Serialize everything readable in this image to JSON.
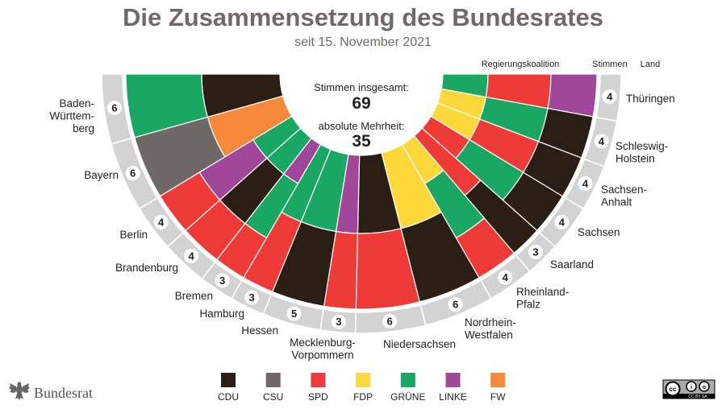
{
  "chart_data": {
    "type": "semicircle-seat-distribution",
    "title": "Die Zusammensetzung des Bundesrates",
    "subtitle": "seit 15. November 2021",
    "column_headers": {
      "coalition": "Regierungskoalition",
      "votes": "Stimmen",
      "state": "Land"
    },
    "total_label": "Stimmen insgesamt:",
    "total_value": "69",
    "majority_label": "absolute Mehrheit:",
    "majority_value": "35",
    "parties": [
      {
        "key": "CDU",
        "label": "CDU",
        "color": "#2b1e14"
      },
      {
        "key": "CSU",
        "label": "CSU",
        "color": "#6e6866"
      },
      {
        "key": "SPD",
        "label": "SPD",
        "color": "#ee3b38"
      },
      {
        "key": "FDP",
        "label": "FDP",
        "color": "#fdd83a"
      },
      {
        "key": "GRUENE",
        "label": "GRÜNE",
        "color": "#1aa764"
      },
      {
        "key": "LINKE",
        "label": "LINKE",
        "color": "#a0479a"
      },
      {
        "key": "FW",
        "label": "FW",
        "color": "#f5883a"
      }
    ],
    "states": [
      {
        "name": "Baden-Württemberg",
        "lines": [
          "Baden-",
          "Württem-",
          "berg"
        ],
        "votes": "6",
        "coalition_outer_to_inner": [
          "GRUENE",
          "CDU"
        ]
      },
      {
        "name": "Bayern",
        "lines": [
          "Bayern"
        ],
        "votes": "6",
        "coalition_outer_to_inner": [
          "CSU",
          "FW"
        ]
      },
      {
        "name": "Berlin",
        "lines": [
          "Berlin"
        ],
        "votes": "4",
        "coalition_outer_to_inner": [
          "SPD",
          "LINKE",
          "GRUENE"
        ]
      },
      {
        "name": "Brandenburg",
        "lines": [
          "Brandenburg"
        ],
        "votes": "4",
        "coalition_outer_to_inner": [
          "SPD",
          "CDU",
          "GRUENE"
        ]
      },
      {
        "name": "Bremen",
        "lines": [
          "Bremen"
        ],
        "votes": "3",
        "coalition_outer_to_inner": [
          "SPD",
          "GRUENE",
          "LINKE"
        ]
      },
      {
        "name": "Hamburg",
        "lines": [
          "Hamburg"
        ],
        "votes": "3",
        "coalition_outer_to_inner": [
          "SPD",
          "GRUENE"
        ]
      },
      {
        "name": "Hessen",
        "lines": [
          "Hessen"
        ],
        "votes": "5",
        "coalition_outer_to_inner": [
          "CDU",
          "GRUENE"
        ]
      },
      {
        "name": "Mecklenburg-Vorpommern",
        "lines": [
          "Mecklenburg-",
          "Vorpommern"
        ],
        "votes": "3",
        "coalition_outer_to_inner": [
          "SPD",
          "LINKE"
        ]
      },
      {
        "name": "Niedersachsen",
        "lines": [
          "Niedersachsen"
        ],
        "votes": "6",
        "coalition_outer_to_inner": [
          "SPD",
          "CDU"
        ]
      },
      {
        "name": "Nordrhein-Westfalen",
        "lines": [
          "Nordrhein-",
          "Westfalen"
        ],
        "votes": "6",
        "coalition_outer_to_inner": [
          "CDU",
          "FDP"
        ]
      },
      {
        "name": "Rheinland-Pfalz",
        "lines": [
          "Rheinland-",
          "Pfalz"
        ],
        "votes": "4",
        "coalition_outer_to_inner": [
          "SPD",
          "GRUENE",
          "FDP"
        ]
      },
      {
        "name": "Saarland",
        "lines": [
          "Saarland"
        ],
        "votes": "3",
        "coalition_outer_to_inner": [
          "CDU",
          "SPD"
        ]
      },
      {
        "name": "Sachsen",
        "lines": [
          "Sachsen"
        ],
        "votes": "4",
        "coalition_outer_to_inner": [
          "CDU",
          "GRUENE",
          "SPD"
        ]
      },
      {
        "name": "Sachsen-Anhalt",
        "lines": [
          "Sachsen-",
          "Anhalt"
        ],
        "votes": "4",
        "coalition_outer_to_inner": [
          "CDU",
          "SPD",
          "FDP"
        ]
      },
      {
        "name": "Schleswig-Holstein",
        "lines": [
          "Schleswig-",
          "Holstein"
        ],
        "votes": "4",
        "coalition_outer_to_inner": [
          "CDU",
          "GRUENE",
          "FDP"
        ]
      },
      {
        "name": "Thüringen",
        "lines": [
          "Thüringen"
        ],
        "votes": "4",
        "coalition_outer_to_inner": [
          "LINKE",
          "SPD",
          "GRUENE"
        ]
      }
    ],
    "ring_color": "#d3d3d3"
  },
  "footer": {
    "logo_text": "Bundesrat",
    "license_badge": "CC BY SA"
  }
}
